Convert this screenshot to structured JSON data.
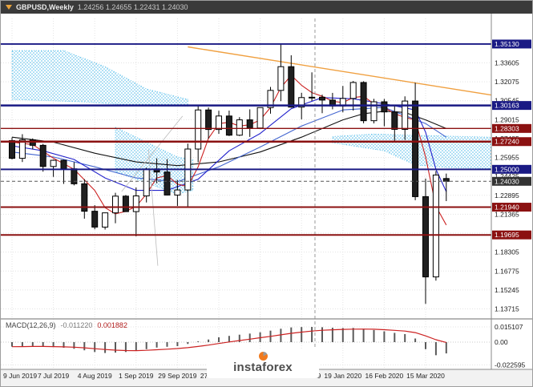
{
  "window": {
    "symbol": "GBPUSD,Weekly",
    "ohlc": "1.24256 1.24655 1.22431 1.24030"
  },
  "indicator": {
    "name": "MACD(12,26,9)",
    "value": "-0.011220",
    "signal": "0.001882"
  },
  "watermark": {
    "text": "instaforex",
    "accent_color": "#f07a1e"
  },
  "chart_data": {
    "type": "candlestick",
    "title": "GBPUSD,Weekly",
    "timeframe": "Weekly",
    "ohlc_display": {
      "open": "1.24256",
      "high": "1.24655",
      "low": "1.22431",
      "close": "1.24030"
    },
    "x_labels": [
      {
        "i": 0,
        "label": "9 Jun 2019"
      },
      {
        "i": 4,
        "label": "7 Jul 2019"
      },
      {
        "i": 8,
        "label": "4 Aug 2019"
      },
      {
        "i": 12,
        "label": "1 Sep 2019"
      },
      {
        "i": 16,
        "label": "29 Sep 2019"
      },
      {
        "i": 20,
        "label": "27 Oct 2019"
      },
      {
        "i": 24,
        "label": "24 Nov 2019"
      },
      {
        "i": 28,
        "label": "22 Dec 2019"
      },
      {
        "i": 32,
        "label": "19 Jan 2020"
      },
      {
        "i": 36,
        "label": "16 Feb 2020"
      },
      {
        "i": 40,
        "label": "15 Mar 2020"
      }
    ],
    "y_gridline_prices": [
      1.33605,
      1.32075,
      1.30545,
      1.29015,
      1.27485,
      1.25955,
      1.24425,
      1.22895,
      1.21365,
      1.19835,
      1.18305,
      1.16775,
      1.15245,
      1.13715
    ],
    "price_levels": [
      {
        "price": 1.3513,
        "label": "1.35130",
        "color": "#1a1a84",
        "lw": 1.8
      },
      {
        "price": 1.30163,
        "label": "1.30163",
        "color": "#1a1a84",
        "lw": 2.6
      },
      {
        "price": 1.28303,
        "label": "1.28303",
        "color": "#8b1111",
        "lw": 1.4
      },
      {
        "price": 1.2724,
        "label": "1.27240",
        "color": "#8b1111",
        "lw": 2.6
      },
      {
        "price": 1.25,
        "label": "1.25000",
        "color": "#1a1a84",
        "lw": 2.0
      },
      {
        "price": 1.2194,
        "label": "1.21940",
        "color": "#8b1111",
        "lw": 2.0
      },
      {
        "price": 1.19695,
        "label": "1.19695",
        "color": "#8b1111",
        "lw": 2.0
      }
    ],
    "current_price": {
      "price": 1.2403,
      "label": "1.24030",
      "color": "#333333"
    },
    "bull_color": "#ffffff",
    "bear_color": "#202020",
    "candles": [
      [
        1.2732,
        1.2758,
        1.258,
        1.2589
      ],
      [
        1.2589,
        1.2784,
        1.2559,
        1.2738
      ],
      [
        1.2738,
        1.275,
        1.2662,
        1.2694
      ],
      [
        1.2694,
        1.2706,
        1.2481,
        1.2523
      ],
      [
        1.2523,
        1.2579,
        1.2439,
        1.2573
      ],
      [
        1.2573,
        1.2578,
        1.2382,
        1.2504
      ],
      [
        1.2504,
        1.2558,
        1.237,
        1.2383
      ],
      [
        1.2383,
        1.242,
        1.2101,
        1.2161
      ],
      [
        1.2161,
        1.221,
        1.2015,
        1.2033
      ],
      [
        1.2033,
        1.215,
        1.2013,
        1.2148
      ],
      [
        1.2148,
        1.231,
        1.2064,
        1.2283
      ],
      [
        1.2283,
        1.2292,
        1.2155,
        1.2158
      ],
      [
        1.2158,
        1.2353,
        1.1958,
        1.2285
      ],
      [
        1.2285,
        1.2514,
        1.2232,
        1.2503
      ],
      [
        1.2503,
        1.2589,
        1.2387,
        1.2478
      ],
      [
        1.2478,
        1.2582,
        1.229,
        1.2292
      ],
      [
        1.2292,
        1.2414,
        1.2204,
        1.2333
      ],
      [
        1.2333,
        1.2708,
        1.2195,
        1.2664
      ],
      [
        1.2664,
        1.3012,
        1.2556,
        1.298
      ],
      [
        1.298,
        1.3,
        1.2748,
        1.2822
      ],
      [
        1.2822,
        1.2973,
        1.2787,
        1.2931
      ],
      [
        1.2931,
        1.2975,
        1.2769,
        1.2776
      ],
      [
        1.2776,
        1.2922,
        1.2769,
        1.29
      ],
      [
        1.29,
        1.2985,
        1.2762,
        1.2834
      ],
      [
        1.2834,
        1.3,
        1.2826,
        1.2999
      ],
      [
        1.2999,
        1.3166,
        1.295,
        1.3138
      ],
      [
        1.3138,
        1.3515,
        1.3051,
        1.333
      ],
      [
        1.333,
        1.3422,
        1.2998,
        1.3003
      ],
      [
        1.3003,
        1.3119,
        1.2904,
        1.308
      ],
      [
        1.308,
        1.3284,
        1.3053,
        1.3083
      ],
      [
        1.3083,
        1.3104,
        1.2954,
        1.306
      ],
      [
        1.306,
        1.3118,
        1.2985,
        1.3012
      ],
      [
        1.3012,
        1.3174,
        1.2961,
        1.3073
      ],
      [
        1.3073,
        1.3214,
        1.2975,
        1.3202
      ],
      [
        1.3202,
        1.3212,
        1.2872,
        1.2893
      ],
      [
        1.2893,
        1.307,
        1.2871,
        1.3046
      ],
      [
        1.3046,
        1.3069,
        1.2848,
        1.2964
      ],
      [
        1.2964,
        1.3018,
        1.2726,
        1.2823
      ],
      [
        1.2823,
        1.309,
        1.2738,
        1.3052
      ],
      [
        1.3052,
        1.32,
        1.225,
        1.2279
      ],
      [
        1.2279,
        1.2425,
        1.1412,
        1.163
      ],
      [
        1.163,
        1.2486,
        1.16,
        1.2454
      ],
      [
        1.24256,
        1.24655,
        1.22431,
        1.2403
      ]
    ],
    "overlays": [
      {
        "name": "ma-long-black",
        "color": "#111111",
        "width": 1.1,
        "points": [
          [
            0,
            1.276
          ],
          [
            4,
            1.272
          ],
          [
            8,
            1.263
          ],
          [
            12,
            1.256
          ],
          [
            16,
            1.253
          ],
          [
            20,
            1.256
          ],
          [
            24,
            1.264
          ],
          [
            28,
            1.276
          ],
          [
            32,
            1.29
          ],
          [
            34,
            1.295
          ],
          [
            36,
            1.297
          ],
          [
            38,
            1.296
          ],
          [
            40,
            1.29
          ],
          [
            42,
            1.283
          ]
        ]
      },
      {
        "name": "ma-slow-blue",
        "color": "#4466d0",
        "width": 1.1,
        "points": [
          [
            0,
            1.264
          ],
          [
            4,
            1.26
          ],
          [
            8,
            1.252
          ],
          [
            12,
            1.243
          ],
          [
            16,
            1.24
          ],
          [
            20,
            1.252
          ],
          [
            24,
            1.268
          ],
          [
            28,
            1.285
          ],
          [
            32,
            1.298
          ],
          [
            36,
            1.3
          ],
          [
            40,
            1.287
          ],
          [
            42,
            1.276
          ]
        ]
      },
      {
        "name": "ma-medium-blue",
        "color": "#2222cc",
        "width": 1.1,
        "points": [
          [
            0,
            1.269
          ],
          [
            3,
            1.265
          ],
          [
            6,
            1.258
          ],
          [
            9,
            1.243
          ],
          [
            12,
            1.233
          ],
          [
            15,
            1.233
          ],
          [
            18,
            1.242
          ],
          [
            21,
            1.265
          ],
          [
            24,
            1.279
          ],
          [
            27,
            1.299
          ],
          [
            30,
            1.308
          ],
          [
            33,
            1.307
          ],
          [
            36,
            1.303
          ],
          [
            39,
            1.298
          ],
          [
            40,
            1.28
          ],
          [
            41,
            1.25
          ],
          [
            42,
            1.232
          ]
        ]
      },
      {
        "name": "ma-fast-red",
        "color": "#cc2222",
        "width": 1.1,
        "points": [
          [
            0,
            1.272
          ],
          [
            2,
            1.27
          ],
          [
            4,
            1.259
          ],
          [
            6,
            1.25
          ],
          [
            8,
            1.233
          ],
          [
            9,
            1.219
          ],
          [
            10,
            1.214
          ],
          [
            11,
            1.216
          ],
          [
            12,
            1.22
          ],
          [
            13,
            1.23
          ],
          [
            14,
            1.243
          ],
          [
            15,
            1.245
          ],
          [
            16,
            1.238
          ],
          [
            17,
            1.236
          ],
          [
            18,
            1.252
          ],
          [
            19,
            1.275
          ],
          [
            20,
            1.287
          ],
          [
            21,
            1.288
          ],
          [
            22,
            1.285
          ],
          [
            23,
            1.286
          ],
          [
            24,
            1.29
          ],
          [
            25,
            1.3
          ],
          [
            26,
            1.316
          ],
          [
            27,
            1.326
          ],
          [
            28,
            1.318
          ],
          [
            29,
            1.312
          ],
          [
            30,
            1.309
          ],
          [
            31,
            1.305
          ],
          [
            32,
            1.304
          ],
          [
            33,
            1.308
          ],
          [
            34,
            1.309
          ],
          [
            35,
            1.303
          ],
          [
            36,
            1.3
          ],
          [
            37,
            1.295
          ],
          [
            38,
            1.292
          ],
          [
            39,
            1.29
          ],
          [
            40,
            1.26
          ],
          [
            41,
            1.22
          ],
          [
            42,
            1.205
          ]
        ]
      },
      {
        "name": "trendline-orange",
        "color": "#f0a040",
        "width": 1.4,
        "points": [
          [
            17,
            1.349
          ],
          [
            46.4,
            1.31
          ]
        ]
      },
      {
        "name": "trendline-gray-1",
        "color": "#bbbbbb",
        "width": 0.8,
        "points": [
          [
            13.2,
            1.266
          ],
          [
            14.1,
            1.172
          ]
        ]
      },
      {
        "name": "trendline-gray-2",
        "color": "#bbbbbb",
        "width": 0.8,
        "points": [
          [
            10.6,
            1.232
          ],
          [
            16.5,
            1.293
          ]
        ]
      }
    ],
    "ichimoku_cloud": {
      "color": "#49b8e8",
      "polygons": [
        [
          [
            0,
            1.346
          ],
          [
            5,
            1.346
          ],
          [
            9,
            1.333
          ],
          [
            13,
            1.315
          ],
          [
            17,
            1.3065
          ],
          [
            17,
            1.301
          ],
          [
            12,
            1.3015
          ],
          [
            7,
            1.3045
          ],
          [
            0,
            1.3065
          ]
        ],
        [
          [
            10,
            1.284
          ],
          [
            13,
            1.272
          ],
          [
            16,
            1.26
          ],
          [
            17.5,
            1.2575
          ],
          [
            17.5,
            1.233
          ],
          [
            16,
            1.23
          ],
          [
            13,
            1.239
          ],
          [
            10,
            1.248
          ]
        ],
        [
          [
            31,
            1.2765
          ],
          [
            35,
            1.2785
          ],
          [
            39,
            1.2775
          ],
          [
            46.4,
            1.276
          ],
          [
            46.4,
            1.2505
          ],
          [
            42,
            1.2515
          ],
          [
            39,
            1.2535
          ],
          [
            36,
            1.265
          ],
          [
            31,
            1.2715
          ]
        ]
      ]
    },
    "year_separator_index": 29.3,
    "macd": {
      "label": "MACD(12,26,9)",
      "value": -0.01122,
      "signal_value": 0.001882,
      "bar_color": "#5a5a5a",
      "signal_color": "#cc2222",
      "axis_labels": [
        {
          "v": 0.015107,
          "label": "0.015107"
        },
        {
          "v": 0,
          "label": "0.00"
        },
        {
          "v": -0.022595,
          "label": "-0.022595"
        }
      ],
      "values": [
        -0.0045,
        -0.0041,
        -0.0039,
        -0.0043,
        -0.0049,
        -0.0056,
        -0.0066,
        -0.0081,
        -0.0098,
        -0.0108,
        -0.0104,
        -0.0098,
        -0.0088,
        -0.007,
        -0.0054,
        -0.0046,
        -0.004,
        -0.0018,
        0.0004,
        0.0026,
        0.0048,
        0.0062,
        0.0074,
        0.0085,
        0.0098,
        0.0114,
        0.0133,
        0.0146,
        0.015,
        0.0151,
        0.0148,
        0.0143,
        0.014,
        0.0141,
        0.0132,
        0.012,
        0.0107,
        0.0092,
        0.008,
        0.0036,
        -0.007,
        -0.013,
        -0.0112
      ]
    }
  }
}
